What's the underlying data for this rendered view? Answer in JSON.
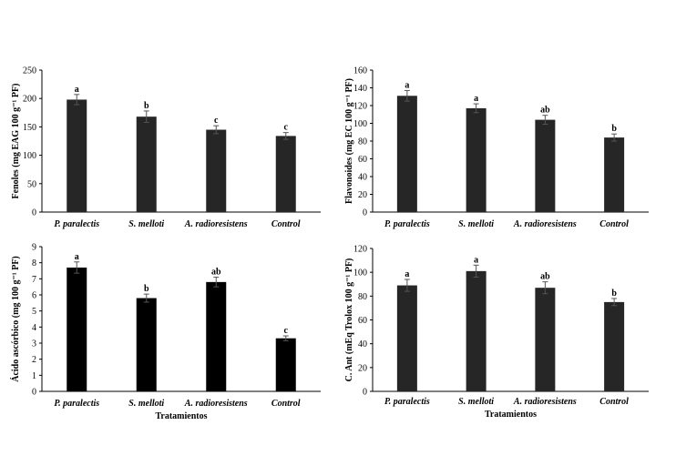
{
  "chart_data": [
    {
      "type": "bar",
      "ylabel": "Fenoles (mg EAG 100 g⁻¹ PF)",
      "xlabel": "",
      "categories": [
        "P. paralectis",
        "S. melloti",
        "A. radioresistens",
        "Control"
      ],
      "values": [
        198,
        168,
        145,
        134
      ],
      "errors": [
        9,
        10,
        7,
        6
      ],
      "letters": [
        "a",
        "b",
        "c",
        "c"
      ],
      "ylim": [
        0,
        250
      ],
      "yticks": [
        0,
        50,
        100,
        150,
        200,
        250
      ],
      "bar_color": "#262626",
      "grid": false
    },
    {
      "type": "bar",
      "ylabel": "Flavonoides (mg EC 100 g⁻¹ PF)",
      "xlabel": "",
      "categories": [
        "P. paralectis",
        "S. melloti",
        "A. radioresistens",
        "Control"
      ],
      "values": [
        131,
        117,
        104,
        84
      ],
      "errors": [
        6,
        5,
        5,
        4
      ],
      "letters": [
        "a",
        "a",
        "ab",
        "b"
      ],
      "ylim": [
        0,
        160
      ],
      "yticks": [
        0,
        20,
        40,
        60,
        80,
        100,
        120,
        140,
        160
      ],
      "bar_color": "#262626",
      "grid": false
    },
    {
      "type": "bar",
      "ylabel": "Ácido ascórbico (mg 100 g⁻¹ PF)",
      "xlabel": "Tratamientos",
      "categories": [
        "P. paralectis",
        "S. melloti",
        "A. radioresistens",
        "Control"
      ],
      "values": [
        7.7,
        5.8,
        6.8,
        3.3
      ],
      "errors": [
        0.35,
        0.25,
        0.3,
        0.15
      ],
      "letters": [
        "a",
        "b",
        "ab",
        "c"
      ],
      "ylim": [
        0,
        9
      ],
      "yticks": [
        0,
        1,
        2,
        3,
        4,
        5,
        6,
        7,
        8,
        9
      ],
      "bar_color": "#000000",
      "grid": false
    },
    {
      "type": "bar",
      "ylabel": "C. Ant (mEq Trolox 100 g⁻¹ PF)",
      "xlabel": "Tratamientos",
      "categories": [
        "P. paralectis",
        "S. melloti",
        "A. radioresistens",
        "Control"
      ],
      "values": [
        89,
        101,
        87,
        75
      ],
      "errors": [
        5,
        5,
        5,
        3
      ],
      "letters": [
        "a",
        "a",
        "ab",
        "b"
      ],
      "ylim": [
        0,
        120
      ],
      "yticks": [
        0,
        20,
        40,
        60,
        80,
        100,
        120
      ],
      "bar_color": "#262626",
      "grid": false
    }
  ]
}
